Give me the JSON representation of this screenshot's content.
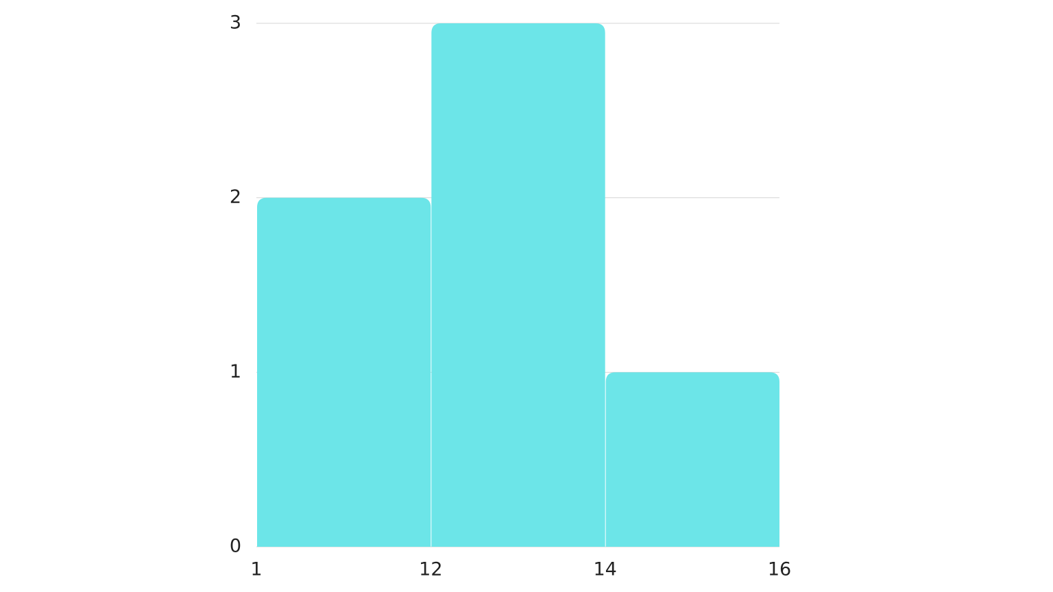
{
  "chart_data": {
    "type": "histogram",
    "bins": [
      1,
      12,
      14,
      16
    ],
    "values": [
      2,
      3,
      1
    ],
    "color": "#6ce5e8",
    "ylim": [
      0,
      3
    ],
    "yticks": [
      0,
      1,
      2,
      3
    ],
    "grid": true
  }
}
